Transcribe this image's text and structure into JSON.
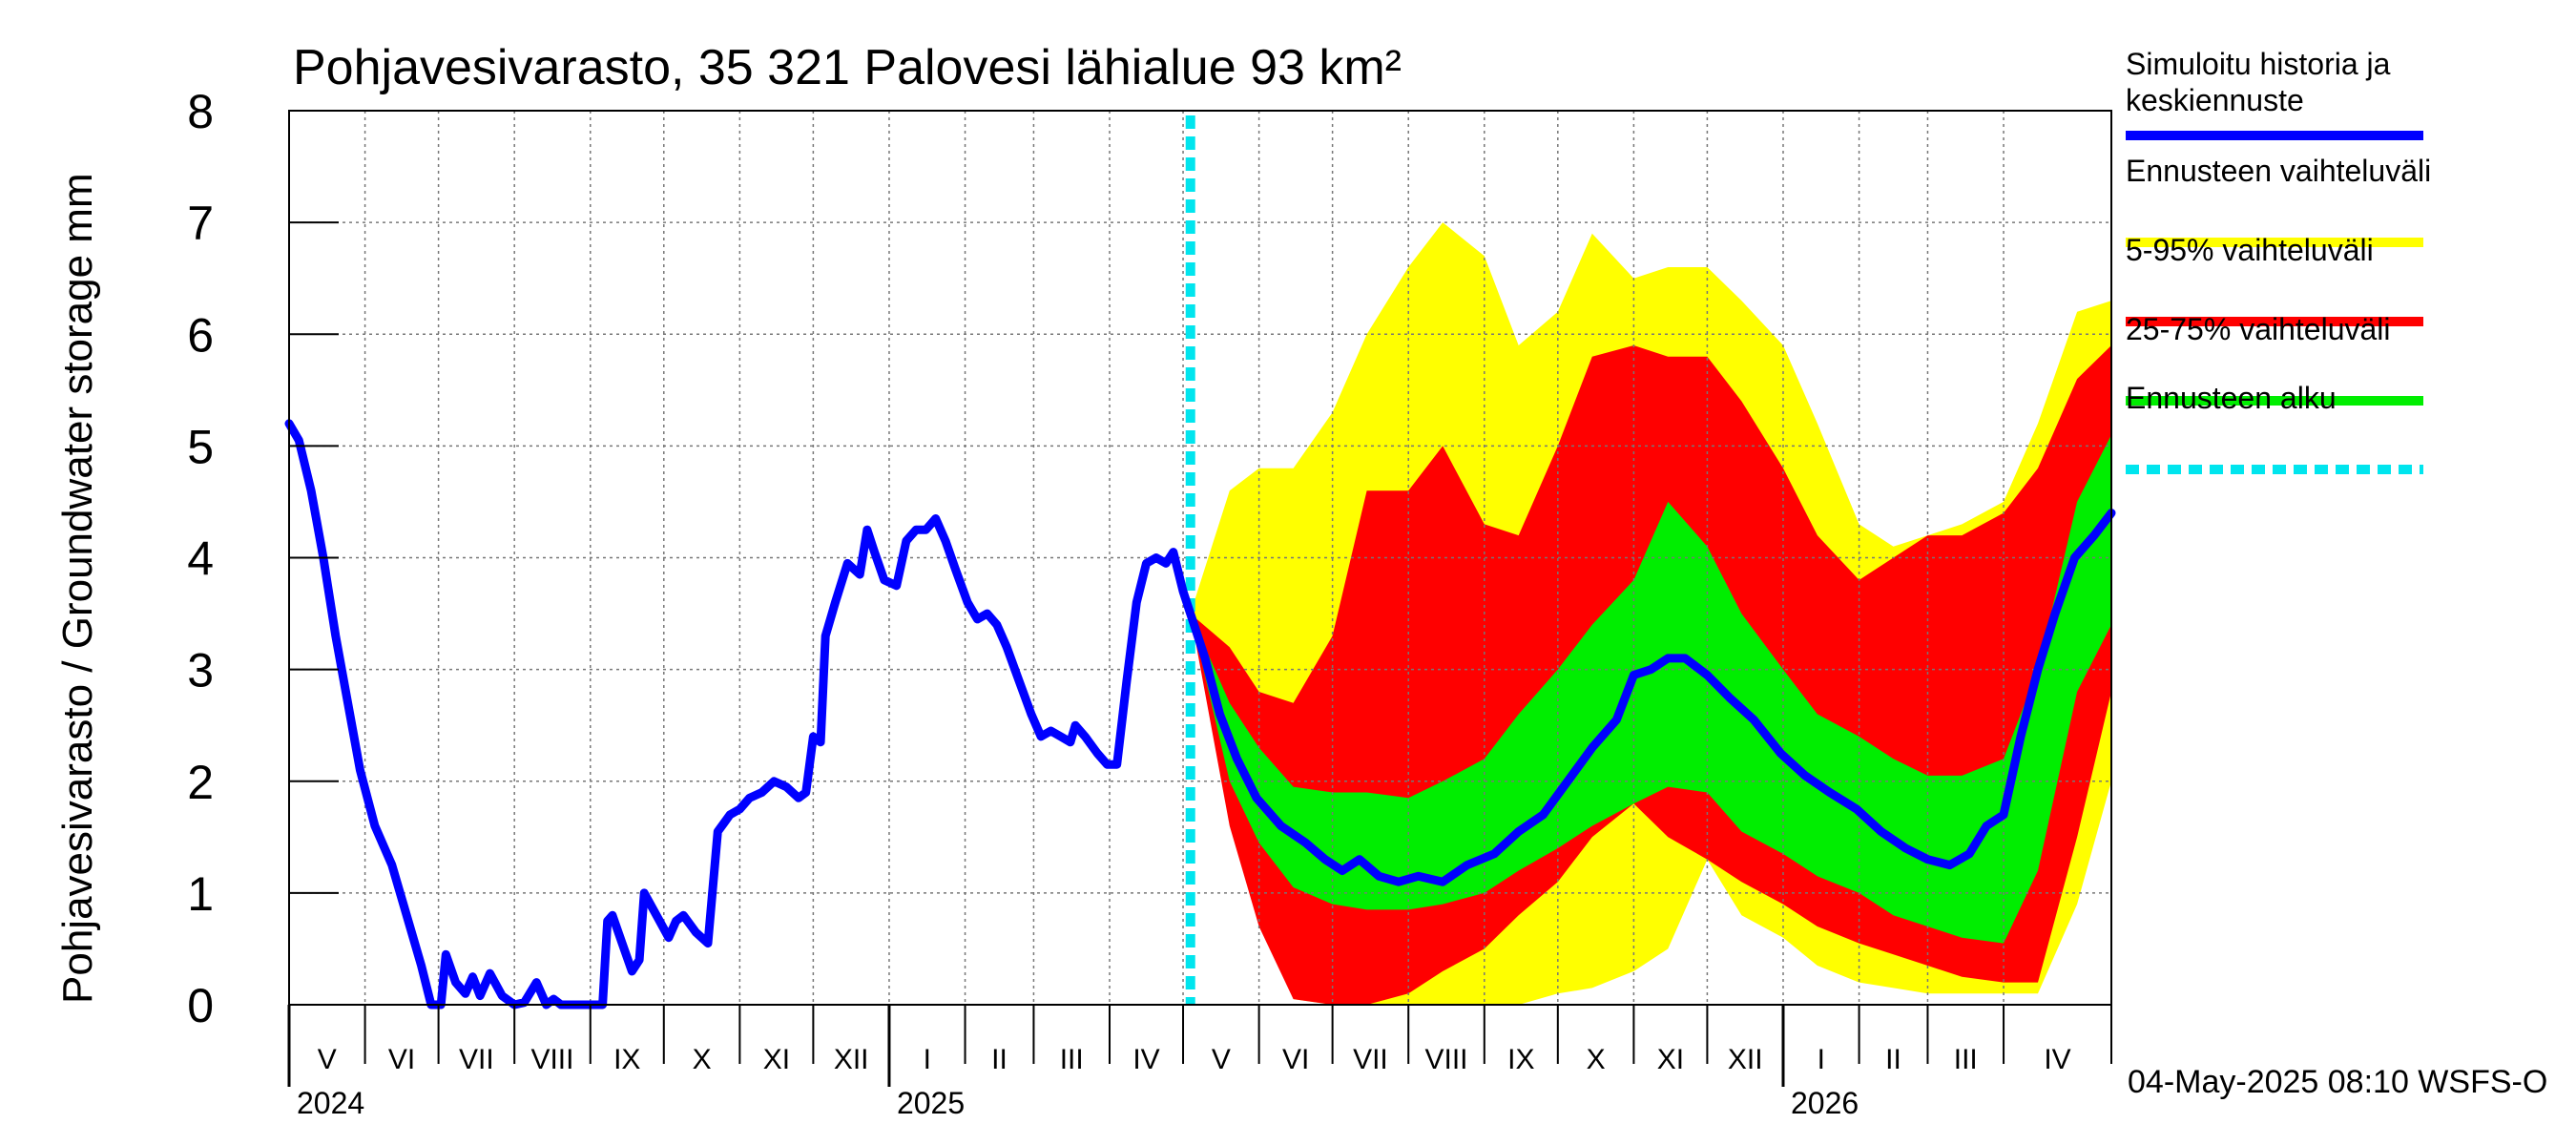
{
  "chart_data": {
    "type": "area",
    "title": "Pohjavesivarasto, 35 321 Palovesi lähialue 93 km²",
    "ylabel": "Pohjavesivarasto / Groundwater storage   mm",
    "ylim": [
      0,
      8
    ],
    "yticks": [
      0,
      1,
      2,
      3,
      4,
      5,
      6,
      7,
      8
    ],
    "xlim": [
      "2024-05-01",
      "2026-05-15"
    ],
    "grid": true,
    "legend_position": "right",
    "month_labels": [
      {
        "label": "V",
        "date": "2024-05-01"
      },
      {
        "label": "VI",
        "date": "2024-06-01"
      },
      {
        "label": "VII",
        "date": "2024-07-01"
      },
      {
        "label": "VIII",
        "date": "2024-08-01"
      },
      {
        "label": "IX",
        "date": "2024-09-01"
      },
      {
        "label": "X",
        "date": "2024-10-01"
      },
      {
        "label": "XI",
        "date": "2024-11-01"
      },
      {
        "label": "XII",
        "date": "2024-12-01"
      },
      {
        "label": "I",
        "date": "2025-01-01"
      },
      {
        "label": "II",
        "date": "2025-02-01"
      },
      {
        "label": "III",
        "date": "2025-03-01"
      },
      {
        "label": "IV",
        "date": "2025-04-01"
      },
      {
        "label": "V",
        "date": "2025-05-01"
      },
      {
        "label": "VI",
        "date": "2025-06-01"
      },
      {
        "label": "VII",
        "date": "2025-07-01"
      },
      {
        "label": "VIII",
        "date": "2025-08-01"
      },
      {
        "label": "IX",
        "date": "2025-09-01"
      },
      {
        "label": "X",
        "date": "2025-10-01"
      },
      {
        "label": "XI",
        "date": "2025-11-01"
      },
      {
        "label": "XII",
        "date": "2025-12-01"
      },
      {
        "label": "I",
        "date": "2026-01-01"
      },
      {
        "label": "II",
        "date": "2026-02-01"
      },
      {
        "label": "III",
        "date": "2026-03-01"
      },
      {
        "label": "IV",
        "date": "2026-04-01"
      }
    ],
    "year_labels": [
      {
        "label": "2024",
        "date": "2024-05-01"
      },
      {
        "label": "2025",
        "date": "2025-01-01"
      },
      {
        "label": "2026",
        "date": "2026-01-01"
      }
    ],
    "forecast_start": "2025-05-04",
    "footer": "04-May-2025 08:10 WSFS-O",
    "legend": [
      {
        "label": "Simuloitu historia ja keskiennuste",
        "color": "#0000ff",
        "style": "solid"
      },
      {
        "label": "Ennusteen vaihteluväli",
        "color": "#ffff00",
        "style": "solid"
      },
      {
        "label": "5-95% vaihteluväli",
        "color": "#ff0000",
        "style": "solid"
      },
      {
        "label": "25-75% vaihteluväli",
        "color": "#00ee00",
        "style": "solid"
      },
      {
        "label": "Ennusteen alku",
        "color": "#00e5ee",
        "style": "dashed"
      }
    ],
    "series": [
      {
        "name": "Simuloitu historia ja keskiennuste",
        "color": "#0000ff",
        "points": [
          [
            "2024-05-01",
            5.2
          ],
          [
            "2024-05-05",
            5.05
          ],
          [
            "2024-05-10",
            4.6
          ],
          [
            "2024-05-15",
            4.0
          ],
          [
            "2024-05-20",
            3.3
          ],
          [
            "2024-05-25",
            2.7
          ],
          [
            "2024-05-30",
            2.1
          ],
          [
            "2024-06-05",
            1.6
          ],
          [
            "2024-06-12",
            1.25
          ],
          [
            "2024-06-18",
            0.8
          ],
          [
            "2024-06-24",
            0.35
          ],
          [
            "2024-06-28",
            0.0
          ],
          [
            "2024-07-02",
            0.0
          ],
          [
            "2024-07-04",
            0.45
          ],
          [
            "2024-07-08",
            0.2
          ],
          [
            "2024-07-12",
            0.1
          ],
          [
            "2024-07-15",
            0.25
          ],
          [
            "2024-07-18",
            0.08
          ],
          [
            "2024-07-22",
            0.28
          ],
          [
            "2024-07-27",
            0.08
          ],
          [
            "2024-08-01",
            0.0
          ],
          [
            "2024-08-05",
            0.02
          ],
          [
            "2024-08-10",
            0.2
          ],
          [
            "2024-08-14",
            0.0
          ],
          [
            "2024-08-17",
            0.05
          ],
          [
            "2024-08-20",
            0.0
          ],
          [
            "2024-09-06",
            0.0
          ],
          [
            "2024-09-08",
            0.75
          ],
          [
            "2024-09-10",
            0.8
          ],
          [
            "2024-09-14",
            0.55
          ],
          [
            "2024-09-18",
            0.3
          ],
          [
            "2024-09-21",
            0.4
          ],
          [
            "2024-09-23",
            1.0
          ],
          [
            "2024-09-28",
            0.8
          ],
          [
            "2024-10-03",
            0.6
          ],
          [
            "2024-10-06",
            0.75
          ],
          [
            "2024-10-09",
            0.8
          ],
          [
            "2024-10-14",
            0.65
          ],
          [
            "2024-10-19",
            0.55
          ],
          [
            "2024-10-23",
            1.55
          ],
          [
            "2024-10-28",
            1.7
          ],
          [
            "2024-11-01",
            1.75
          ],
          [
            "2024-11-05",
            1.85
          ],
          [
            "2024-11-10",
            1.9
          ],
          [
            "2024-11-15",
            2.0
          ],
          [
            "2024-11-20",
            1.95
          ],
          [
            "2024-11-25",
            1.85
          ],
          [
            "2024-11-28",
            1.9
          ],
          [
            "2024-12-01",
            2.4
          ],
          [
            "2024-12-04",
            2.35
          ],
          [
            "2024-12-06",
            3.3
          ],
          [
            "2024-12-10",
            3.6
          ],
          [
            "2024-12-15",
            3.95
          ],
          [
            "2024-12-20",
            3.85
          ],
          [
            "2024-12-23",
            4.25
          ],
          [
            "2024-12-26",
            4.05
          ],
          [
            "2024-12-30",
            3.8
          ],
          [
            "2025-01-04",
            3.75
          ],
          [
            "2025-01-08",
            4.15
          ],
          [
            "2025-01-12",
            4.25
          ],
          [
            "2025-01-16",
            4.25
          ],
          [
            "2025-01-20",
            4.35
          ],
          [
            "2025-01-24",
            4.15
          ],
          [
            "2025-01-28",
            3.9
          ],
          [
            "2025-02-02",
            3.6
          ],
          [
            "2025-02-06",
            3.45
          ],
          [
            "2025-02-10",
            3.5
          ],
          [
            "2025-02-14",
            3.4
          ],
          [
            "2025-02-18",
            3.2
          ],
          [
            "2025-02-23",
            2.9
          ],
          [
            "2025-02-28",
            2.6
          ],
          [
            "2025-03-04",
            2.4
          ],
          [
            "2025-03-08",
            2.45
          ],
          [
            "2025-03-12",
            2.4
          ],
          [
            "2025-03-16",
            2.35
          ],
          [
            "2025-03-18",
            2.5
          ],
          [
            "2025-03-22",
            2.4
          ],
          [
            "2025-03-27",
            2.25
          ],
          [
            "2025-03-31",
            2.15
          ],
          [
            "2025-04-04",
            2.15
          ],
          [
            "2025-04-08",
            2.9
          ],
          [
            "2025-04-12",
            3.6
          ],
          [
            "2025-04-16",
            3.95
          ],
          [
            "2025-04-20",
            4.0
          ],
          [
            "2025-04-24",
            3.95
          ],
          [
            "2025-04-27",
            4.05
          ],
          [
            "2025-05-01",
            3.7
          ],
          [
            "2025-05-04",
            3.5
          ],
          [
            "2025-05-10",
            3.1
          ],
          [
            "2025-05-16",
            2.6
          ],
          [
            "2025-05-23",
            2.2
          ],
          [
            "2025-05-31",
            1.85
          ],
          [
            "2025-06-10",
            1.6
          ],
          [
            "2025-06-20",
            1.45
          ],
          [
            "2025-06-28",
            1.3
          ],
          [
            "2025-07-05",
            1.2
          ],
          [
            "2025-07-12",
            1.3
          ],
          [
            "2025-07-20",
            1.15
          ],
          [
            "2025-07-28",
            1.1
          ],
          [
            "2025-08-05",
            1.15
          ],
          [
            "2025-08-15",
            1.1
          ],
          [
            "2025-08-25",
            1.25
          ],
          [
            "2025-09-05",
            1.35
          ],
          [
            "2025-09-15",
            1.55
          ],
          [
            "2025-09-25",
            1.7
          ],
          [
            "2025-10-05",
            2.0
          ],
          [
            "2025-10-15",
            2.3
          ],
          [
            "2025-10-25",
            2.55
          ],
          [
            "2025-11-01",
            2.95
          ],
          [
            "2025-11-08",
            3.0
          ],
          [
            "2025-11-15",
            3.1
          ],
          [
            "2025-11-22",
            3.1
          ],
          [
            "2025-12-01",
            2.95
          ],
          [
            "2025-12-10",
            2.75
          ],
          [
            "2025-12-20",
            2.55
          ],
          [
            "2025-12-31",
            2.25
          ],
          [
            "2026-01-10",
            2.05
          ],
          [
            "2026-01-20",
            1.9
          ],
          [
            "2026-01-31",
            1.75
          ],
          [
            "2026-02-10",
            1.55
          ],
          [
            "2026-02-20",
            1.4
          ],
          [
            "2026-03-01",
            1.3
          ],
          [
            "2026-03-10",
            1.25
          ],
          [
            "2026-03-18",
            1.35
          ],
          [
            "2026-03-25",
            1.6
          ],
          [
            "2026-04-01",
            1.7
          ],
          [
            "2026-04-08",
            2.4
          ],
          [
            "2026-04-15",
            3.0
          ],
          [
            "2026-04-22",
            3.5
          ],
          [
            "2026-04-30",
            4.0
          ],
          [
            "2026-05-08",
            4.2
          ],
          [
            "2026-05-15",
            4.4
          ]
        ]
      }
    ],
    "bands": [
      {
        "name": "Ennusteen vaihteluväli",
        "color": "#ffff00",
        "x": [
          "2025-05-04",
          "2025-05-20",
          "2025-06-01",
          "2025-06-15",
          "2025-07-01",
          "2025-07-15",
          "2025-08-01",
          "2025-08-15",
          "2025-09-01",
          "2025-09-15",
          "2025-10-01",
          "2025-10-15",
          "2025-11-01",
          "2025-11-15",
          "2025-12-01",
          "2025-12-15",
          "2026-01-01",
          "2026-01-15",
          "2026-02-01",
          "2026-02-15",
          "2026-03-01",
          "2026-03-15",
          "2026-04-01",
          "2026-04-15",
          "2026-05-01",
          "2026-05-15"
        ],
        "lower": [
          3.5,
          1.8,
          0.8,
          0.05,
          0.0,
          0.0,
          0.0,
          0.0,
          0.0,
          0.0,
          0.1,
          0.15,
          0.3,
          0.5,
          1.3,
          0.8,
          0.6,
          0.35,
          0.2,
          0.15,
          0.1,
          0.1,
          0.1,
          0.1,
          0.9,
          2.0
        ],
        "upper": [
          3.5,
          4.6,
          4.8,
          4.8,
          5.3,
          6.0,
          6.6,
          7.0,
          6.7,
          5.9,
          6.2,
          6.9,
          6.5,
          6.6,
          6.6,
          6.3,
          5.9,
          5.2,
          4.3,
          4.1,
          4.2,
          4.3,
          4.5,
          5.2,
          6.2,
          6.3
        ]
      },
      {
        "name": "5-95% vaihteluväli",
        "color": "#ff0000",
        "x": [
          "2025-05-04",
          "2025-05-20",
          "2025-06-01",
          "2025-06-15",
          "2025-07-01",
          "2025-07-15",
          "2025-08-01",
          "2025-08-15",
          "2025-09-01",
          "2025-09-15",
          "2025-10-01",
          "2025-10-15",
          "2025-11-01",
          "2025-11-15",
          "2025-12-01",
          "2025-12-15",
          "2026-01-01",
          "2026-01-15",
          "2026-02-01",
          "2026-02-15",
          "2026-03-01",
          "2026-03-15",
          "2026-04-01",
          "2026-04-15",
          "2026-05-01",
          "2026-05-15"
        ],
        "lower": [
          3.5,
          1.6,
          0.7,
          0.05,
          0.0,
          0.0,
          0.1,
          0.3,
          0.5,
          0.8,
          1.1,
          1.5,
          1.8,
          1.5,
          1.3,
          1.1,
          0.9,
          0.7,
          0.55,
          0.45,
          0.35,
          0.25,
          0.2,
          0.2,
          1.5,
          2.8
        ],
        "upper": [
          3.5,
          3.2,
          2.8,
          2.7,
          3.3,
          4.6,
          4.6,
          5.0,
          4.3,
          4.2,
          5.0,
          5.8,
          5.9,
          5.8,
          5.8,
          5.4,
          4.8,
          4.2,
          3.8,
          4.0,
          4.2,
          4.2,
          4.4,
          4.8,
          5.6,
          5.9
        ]
      },
      {
        "name": "25-75% vaihteluväli",
        "color": "#00ee00",
        "x": [
          "2025-05-04",
          "2025-05-20",
          "2025-06-01",
          "2025-06-15",
          "2025-07-01",
          "2025-07-15",
          "2025-08-01",
          "2025-08-15",
          "2025-09-01",
          "2025-09-15",
          "2025-10-01",
          "2025-10-15",
          "2025-11-01",
          "2025-11-15",
          "2025-12-01",
          "2025-12-15",
          "2026-01-01",
          "2026-01-15",
          "2026-02-01",
          "2026-02-15",
          "2026-03-01",
          "2026-03-15",
          "2026-04-01",
          "2026-04-15",
          "2026-05-01",
          "2026-05-15"
        ],
        "lower": [
          3.5,
          2.0,
          1.45,
          1.05,
          0.9,
          0.85,
          0.85,
          0.9,
          1.0,
          1.2,
          1.4,
          1.6,
          1.8,
          1.95,
          1.9,
          1.55,
          1.35,
          1.15,
          1.0,
          0.8,
          0.7,
          0.6,
          0.55,
          1.2,
          2.8,
          3.4
        ],
        "upper": [
          3.5,
          2.7,
          2.3,
          1.95,
          1.9,
          1.9,
          1.85,
          2.0,
          2.2,
          2.6,
          3.0,
          3.4,
          3.8,
          4.5,
          4.1,
          3.5,
          3.0,
          2.6,
          2.4,
          2.2,
          2.05,
          2.05,
          2.2,
          3.0,
          4.5,
          5.1
        ]
      }
    ]
  }
}
